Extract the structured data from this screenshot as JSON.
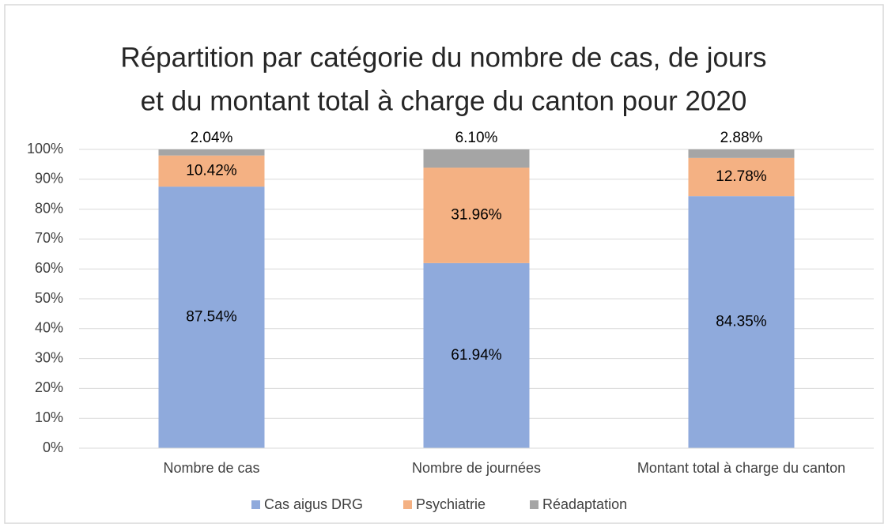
{
  "chart_data": {
    "type": "stacked_bar",
    "title": [
      "Répartition par catégorie du nombre de cas, de jours",
      "et du montant total à charge du canton pour 2020"
    ],
    "categories": [
      "Nombre de cas",
      "Nombre de journées",
      "Montant total à charge du canton"
    ],
    "series": [
      {
        "name": "Cas aigus DRG",
        "color": "#8faadc",
        "values": [
          87.54,
          61.94,
          84.35
        ],
        "value_labels": [
          "87.54%",
          "61.94%",
          "84.35%"
        ]
      },
      {
        "name": "Psychiatrie",
        "color": "#f4b183",
        "values": [
          10.42,
          31.96,
          12.78
        ],
        "value_labels": [
          "10.42%",
          "31.96%",
          "12.78%"
        ]
      },
      {
        "name": "Réadaptation",
        "color": "#a5a5a5",
        "values": [
          2.04,
          6.1,
          2.88
        ],
        "value_labels": [
          "2.04%",
          "6.10%",
          "2.88%"
        ]
      }
    ],
    "ylim": [
      0,
      100
    ],
    "yticks": [
      {
        "value": 0,
        "label": "0%"
      },
      {
        "value": 10,
        "label": "10%"
      },
      {
        "value": 20,
        "label": "20%"
      },
      {
        "value": 30,
        "label": "30%"
      },
      {
        "value": 40,
        "label": "40%"
      },
      {
        "value": 50,
        "label": "50%"
      },
      {
        "value": 60,
        "label": "60%"
      },
      {
        "value": 70,
        "label": "70%"
      },
      {
        "value": 80,
        "label": "80%"
      },
      {
        "value": 90,
        "label": "90%"
      },
      {
        "value": 100,
        "label": "100%"
      }
    ],
    "grid": true,
    "legend": "bottom"
  }
}
